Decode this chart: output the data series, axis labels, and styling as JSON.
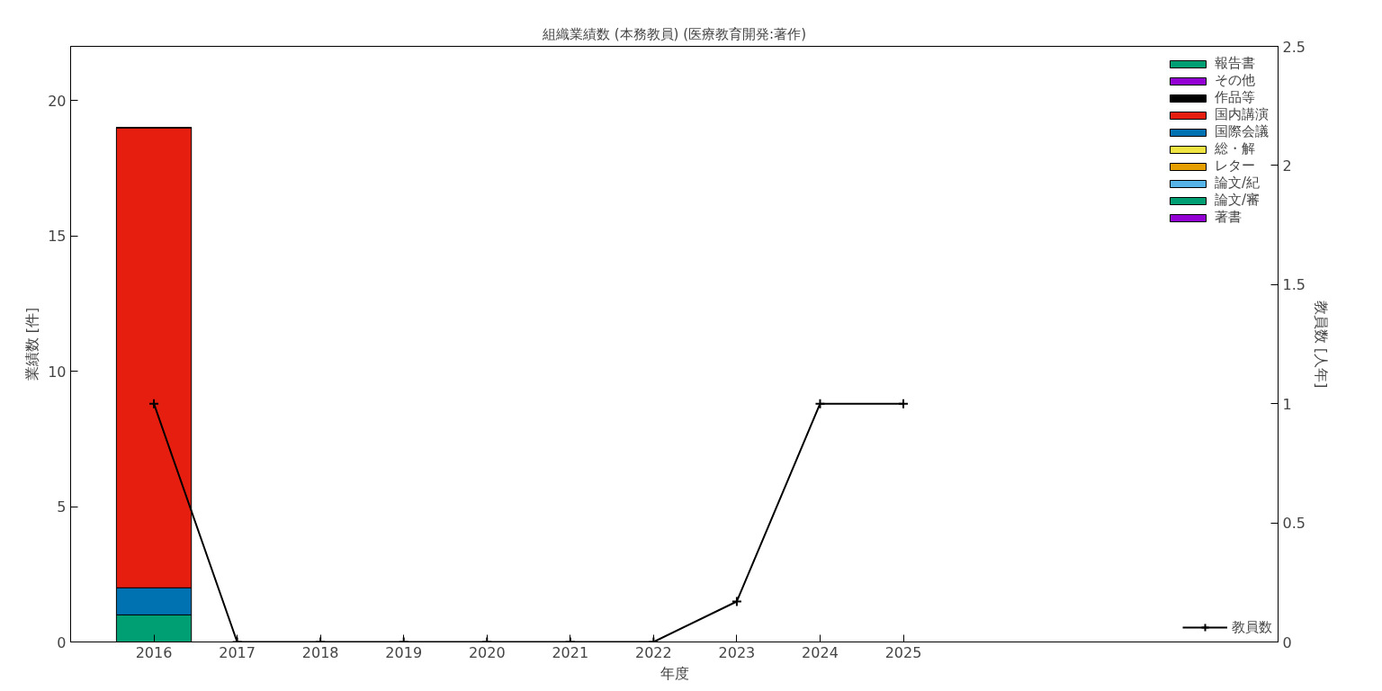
{
  "chart_data": {
    "type": "bar",
    "title": "組織業績数 (本務教員) (医療教育開発:著作)",
    "xlabel": "年度",
    "ylabel": "業績数 [件]",
    "y2label": "教員数 [人年]",
    "x": [
      2016,
      2017,
      2018,
      2019,
      2020,
      2021,
      2022,
      2023,
      2024,
      2025
    ],
    "xlim": [
      2015,
      2029.5
    ],
    "xticks": [
      2016,
      2017,
      2018,
      2019,
      2020,
      2021,
      2022,
      2023,
      2024,
      2025
    ],
    "ylim": [
      0,
      22
    ],
    "yticks": [
      0,
      5,
      10,
      15,
      20
    ],
    "y2lim": [
      0,
      2.5
    ],
    "y2ticks": [
      0,
      0.5,
      1,
      1.5,
      2,
      2.5
    ],
    "stacked": true,
    "grid": false,
    "legend": "right",
    "series": [
      {
        "name": "著書",
        "color": "#9400d3",
        "values": [
          0,
          0,
          0,
          0,
          0,
          0,
          0,
          0,
          0,
          0
        ]
      },
      {
        "name": "論文/審",
        "color": "#009e73",
        "values": [
          1,
          0,
          0,
          0,
          0,
          0,
          0,
          0,
          0,
          0
        ]
      },
      {
        "name": "論文/紀",
        "color": "#56b4e9",
        "values": [
          0,
          0,
          0,
          0,
          0,
          0,
          0,
          0,
          0,
          0
        ]
      },
      {
        "name": "レター",
        "color": "#e69f00",
        "values": [
          0,
          0,
          0,
          0,
          0,
          0,
          0,
          0,
          0,
          0
        ]
      },
      {
        "name": "総・解",
        "color": "#f0e442",
        "values": [
          0,
          0,
          0,
          0,
          0,
          0,
          0,
          0,
          0,
          0
        ]
      },
      {
        "name": "国際会議",
        "color": "#0072b2",
        "values": [
          1,
          0,
          0,
          0,
          0,
          0,
          0,
          0,
          0,
          0
        ]
      },
      {
        "name": "国内講演",
        "color": "#e51e10",
        "values": [
          17,
          0,
          0,
          0,
          0,
          0,
          0,
          0,
          0,
          0
        ]
      },
      {
        "name": "作品等",
        "color": "#000000",
        "values": [
          0,
          0,
          0,
          0,
          0,
          0,
          0,
          0,
          0,
          0
        ]
      },
      {
        "name": "その他",
        "color": "#9400d3",
        "values": [
          0,
          0,
          0,
          0,
          0,
          0,
          0,
          0,
          0,
          0
        ]
      },
      {
        "name": "報告書",
        "color": "#009e73",
        "values": [
          0,
          0,
          0,
          0,
          0,
          0,
          0,
          0,
          0,
          0
        ]
      },
      {
        "name": "教員数",
        "type": "line",
        "axis": "y2",
        "color": "#000000",
        "marker": "cross",
        "line_style": "solid",
        "values": [
          1,
          0,
          0,
          0,
          0,
          0,
          0,
          0.17,
          1,
          1
        ]
      }
    ]
  }
}
